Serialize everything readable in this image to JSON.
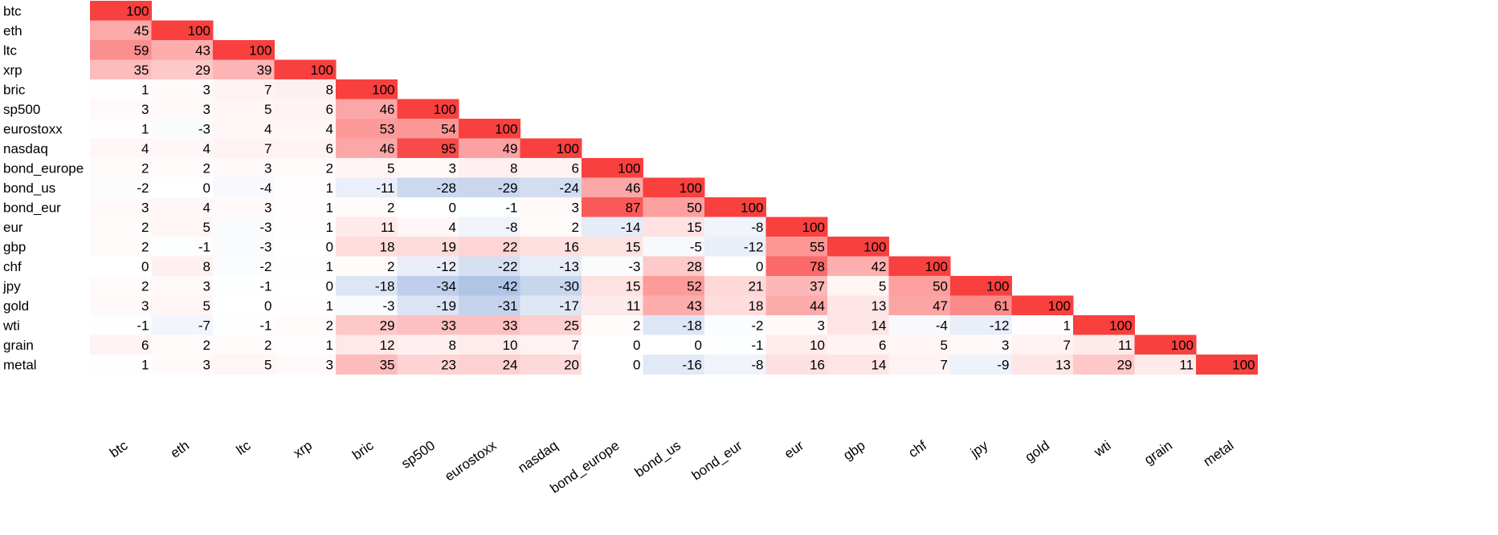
{
  "chart_data": {
    "type": "heatmap",
    "title": "",
    "xlabel": "",
    "ylabel": "",
    "labels": [
      "btc",
      "eth",
      "ltc",
      "xrp",
      "bric",
      "sp500",
      "eurostoxx",
      "nasdaq",
      "bond_europe",
      "bond_us",
      "bond_eur",
      "eur",
      "gbp",
      "chf",
      "jpy",
      "gold",
      "wti",
      "grain",
      "metal"
    ],
    "matrix": [
      [
        100
      ],
      [
        45,
        100
      ],
      [
        59,
        43,
        100
      ],
      [
        35,
        29,
        39,
        100
      ],
      [
        1,
        3,
        7,
        8,
        100
      ],
      [
        3,
        3,
        5,
        6,
        46,
        100
      ],
      [
        1,
        -3,
        4,
        4,
        53,
        54,
        100
      ],
      [
        4,
        4,
        7,
        6,
        46,
        95,
        49,
        100
      ],
      [
        2,
        2,
        3,
        2,
        5,
        3,
        8,
        6,
        100
      ],
      [
        -2,
        0,
        -4,
        1,
        -11,
        -28,
        -29,
        -24,
        46,
        100
      ],
      [
        3,
        4,
        3,
        1,
        2,
        0,
        -1,
        3,
        87,
        50,
        100
      ],
      [
        2,
        5,
        -3,
        1,
        11,
        4,
        -8,
        2,
        -14,
        15,
        -8,
        100
      ],
      [
        2,
        -1,
        -3,
        0,
        18,
        19,
        22,
        16,
        15,
        -5,
        -12,
        55,
        100
      ],
      [
        0,
        8,
        -2,
        1,
        2,
        -12,
        -22,
        -13,
        -3,
        28,
        0,
        78,
        42,
        100
      ],
      [
        2,
        3,
        -1,
        0,
        -18,
        -34,
        -42,
        -30,
        15,
        52,
        21,
        37,
        5,
        50,
        100
      ],
      [
        3,
        5,
        0,
        1,
        -3,
        -19,
        -31,
        -17,
        11,
        43,
        18,
        44,
        13,
        47,
        61,
        100
      ],
      [
        -1,
        -7,
        -1,
        2,
        29,
        33,
        33,
        25,
        2,
        -18,
        -2,
        3,
        14,
        -4,
        -12,
        1,
        100
      ],
      [
        6,
        2,
        2,
        1,
        12,
        8,
        10,
        7,
        0,
        0,
        -1,
        10,
        6,
        5,
        3,
        7,
        11,
        100
      ],
      [
        1,
        3,
        5,
        3,
        35,
        23,
        24,
        20,
        0,
        -16,
        -8,
        16,
        14,
        7,
        -9,
        13,
        29,
        11,
        100
      ]
    ],
    "value_range": [
      -100,
      100
    ],
    "colors": {
      "positive": "#f8403f",
      "negative": "#4472c4",
      "zero": "#ffffff"
    },
    "grid": false,
    "legend": "none"
  }
}
